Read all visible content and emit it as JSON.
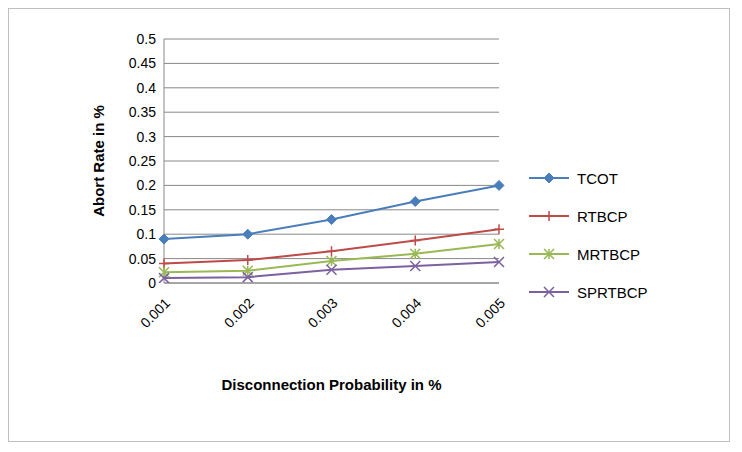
{
  "chart_data": {
    "type": "line",
    "categories": [
      "0.001",
      "0.002",
      "0.003",
      "0.004",
      "0.005"
    ],
    "x_label": "Disconnection Probability in %",
    "y_label": "Abort Rate in %",
    "ylim": [
      0,
      0.5
    ],
    "yticks": [
      0,
      0.05,
      0.1,
      0.15,
      0.2,
      0.25,
      0.3,
      0.35,
      0.4,
      0.45,
      0.5
    ],
    "grid": true,
    "legend": "right",
    "series": [
      {
        "name": "TCOT",
        "color": "#4a7ebb",
        "marker": "diamond",
        "values": [
          0.09,
          0.1,
          0.13,
          0.167,
          0.2
        ]
      },
      {
        "name": "RTBCP",
        "color": "#be4b48",
        "marker": "plus",
        "values": [
          0.04,
          0.047,
          0.065,
          0.087,
          0.11
        ]
      },
      {
        "name": "MRTBCP",
        "color": "#98b954",
        "marker": "star",
        "values": [
          0.022,
          0.025,
          0.045,
          0.06,
          0.08
        ]
      },
      {
        "name": "SPRTBCP",
        "color": "#7d60a0",
        "marker": "x",
        "values": [
          0.01,
          0.012,
          0.027,
          0.035,
          0.043
        ]
      }
    ]
  }
}
